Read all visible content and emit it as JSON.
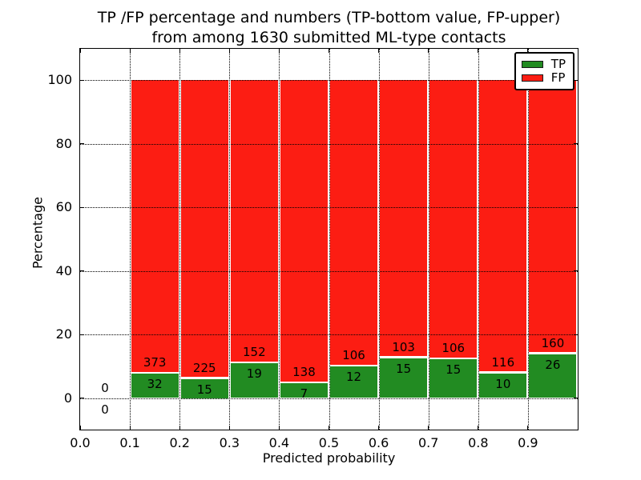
{
  "chart_data": {
    "type": "bar",
    "stacked": true,
    "title": "TP /FP percentage and numbers (TP-bottom value, FP-upper)",
    "subtitle": "from among 1630 submitted ML-type contacts",
    "xlabel": "Predicted probability",
    "ylabel": "Percentage",
    "total_submitted_contacts": 1630,
    "grid": true,
    "xlim": [
      0.0,
      1.0
    ],
    "ylim": [
      -10.2,
      110.1
    ],
    "bin_width": 0.1,
    "bin_left_edges": [
      0.0,
      0.1,
      0.2,
      0.3,
      0.4,
      0.5,
      0.6,
      0.7,
      0.8,
      0.9
    ],
    "x_tick_labels": [
      "0.0",
      "0.1",
      "0.2",
      "0.3",
      "0.4",
      "0.5",
      "0.6",
      "0.7",
      "0.8",
      "0.9"
    ],
    "y_tick_values": [
      0,
      20,
      40,
      60,
      80,
      100
    ],
    "y_tick_labels": [
      "0",
      "20",
      "40",
      "60",
      "80",
      "100"
    ],
    "series": [
      {
        "name": "TP",
        "color": "#228b22",
        "counts": [
          0,
          32,
          15,
          19,
          7,
          12,
          15,
          15,
          10,
          26
        ],
        "pct": [
          0,
          7.9,
          6.25,
          11.11,
          4.83,
          10.17,
          12.71,
          12.4,
          7.94,
          13.98
        ]
      },
      {
        "name": "FP",
        "color": "#fc1d13",
        "counts": [
          0,
          373,
          225,
          152,
          138,
          106,
          103,
          106,
          116,
          160
        ],
        "pct": [
          0,
          92.1,
          93.75,
          88.89,
          95.17,
          89.83,
          87.29,
          87.6,
          92.06,
          86.02
        ]
      }
    ],
    "legend": {
      "position": "upper right",
      "entries": [
        "TP",
        "FP"
      ]
    }
  }
}
